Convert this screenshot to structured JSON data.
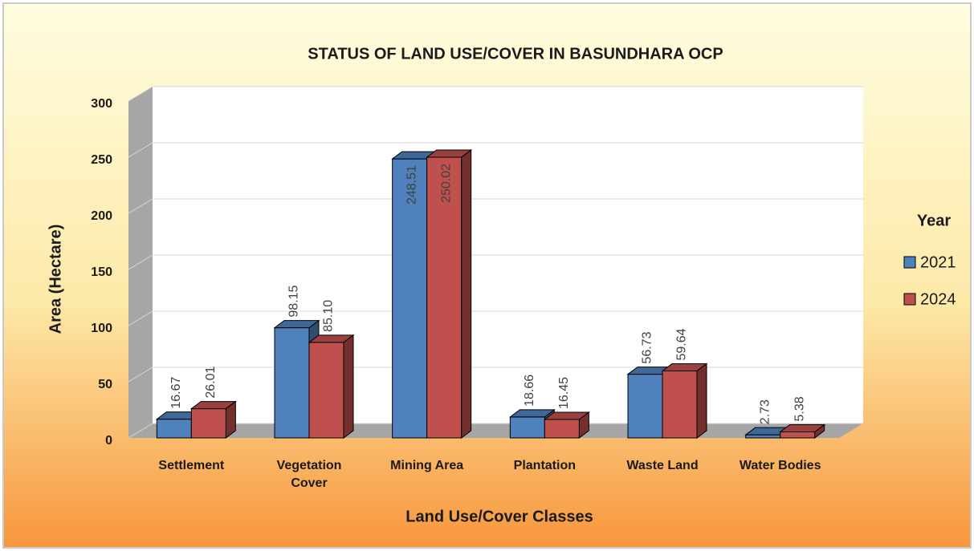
{
  "chart_data": {
    "type": "bar3d",
    "title": "STATUS OF LAND USE/COVER IN BASUNDHARA OCP",
    "x_label": "Land Use/Cover Classes",
    "y_label": "Area (Hectare)",
    "legend_title": "Year",
    "legend_position": "right",
    "categories": [
      "Settlement",
      "Vegetation Cover",
      "Mining Area",
      "Plantation",
      "Waste Land",
      "Water Bodies"
    ],
    "series": [
      {
        "name": "2021",
        "color": "#4f81bd",
        "values": [
          16.67,
          98.15,
          248.51,
          18.66,
          56.73,
          2.73
        ],
        "value_labels": [
          "16.67",
          "98.15",
          "248.51",
          "18.66",
          "56.73",
          "2.73"
        ]
      },
      {
        "name": "2024",
        "color": "#c0504d",
        "values": [
          26.01,
          85.1,
          250.02,
          16.45,
          59.64,
          5.38
        ],
        "value_labels": [
          "26.01",
          "85.10",
          "250.02",
          "16.45",
          "59.64",
          "5.38"
        ]
      }
    ],
    "ylim": [
      0,
      300
    ],
    "yticks": [
      0,
      50,
      100,
      150,
      200,
      250,
      300
    ],
    "grid": true
  }
}
